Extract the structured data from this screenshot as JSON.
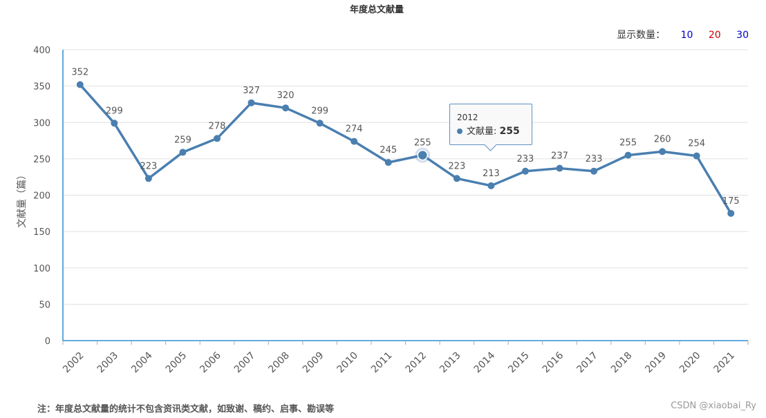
{
  "title": "年度总文献量",
  "count_selector": {
    "label": "显示数量：",
    "options": [
      {
        "label": "10",
        "color": "#0000cc"
      },
      {
        "label": "20",
        "color": "#cc0000"
      },
      {
        "label": "30",
        "color": "#0000cc"
      }
    ]
  },
  "note": "注：年度总文献量的统计不包含资讯类文献，如致谢、稿约、启事、勘误等",
  "watermark": "CSDN @xiaobai_Ry",
  "tooltip": {
    "x": "2012",
    "series": "文献量:",
    "value": "255"
  },
  "colors": {
    "line": "#4a7fb0",
    "axis": "#2b8fd3",
    "grid": "#e0e0e0"
  },
  "chart_data": {
    "type": "line",
    "title": "年度总文献量",
    "xlabel": "",
    "ylabel": "文献量（篇）",
    "ylim": [
      0,
      400
    ],
    "yticks": [
      0,
      50,
      100,
      150,
      200,
      250,
      300,
      350,
      400
    ],
    "grid": true,
    "categories": [
      "2002",
      "2003",
      "2004",
      "2005",
      "2006",
      "2007",
      "2008",
      "2009",
      "2010",
      "2011",
      "2012",
      "2013",
      "2014",
      "2015",
      "2016",
      "2017",
      "2018",
      "2019",
      "2020",
      "2021"
    ],
    "series": [
      {
        "name": "文献量",
        "values": [
          352,
          299,
          223,
          259,
          278,
          327,
          320,
          299,
          274,
          245,
          255,
          223,
          213,
          233,
          237,
          233,
          255,
          260,
          254,
          175
        ]
      }
    ],
    "highlighted_category": "2012"
  }
}
